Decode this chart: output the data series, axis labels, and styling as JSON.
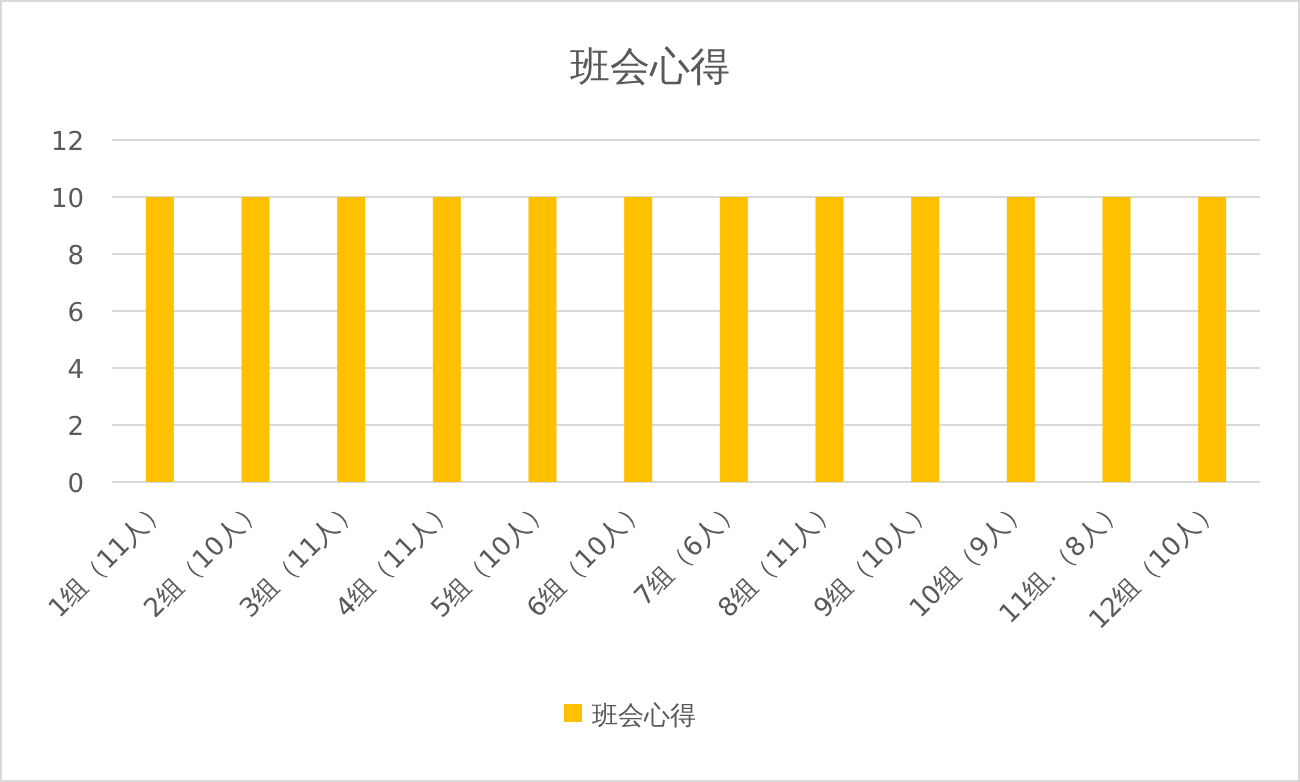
{
  "chart_data": {
    "type": "bar",
    "title": "班会心得",
    "categories": [
      "1组（11人）",
      "2组（10人）",
      "3组（11人）",
      "4组（11人）",
      "5组（10人）",
      "6组（10人）",
      "7组（6人）",
      "8组（11人）",
      "9组（10人）",
      "10组（9人）",
      "11组.（8人）",
      "12组（10人）"
    ],
    "series": [
      {
        "name": "班会心得",
        "color": "#ffc000",
        "values": [
          10,
          10,
          10,
          10,
          10,
          10,
          10,
          10,
          10,
          10,
          10,
          10
        ]
      }
    ],
    "ylim": [
      0,
      12
    ],
    "yticks": [
      0,
      2,
      4,
      6,
      8,
      10,
      12
    ],
    "grid": "y",
    "legend": "bottom"
  }
}
